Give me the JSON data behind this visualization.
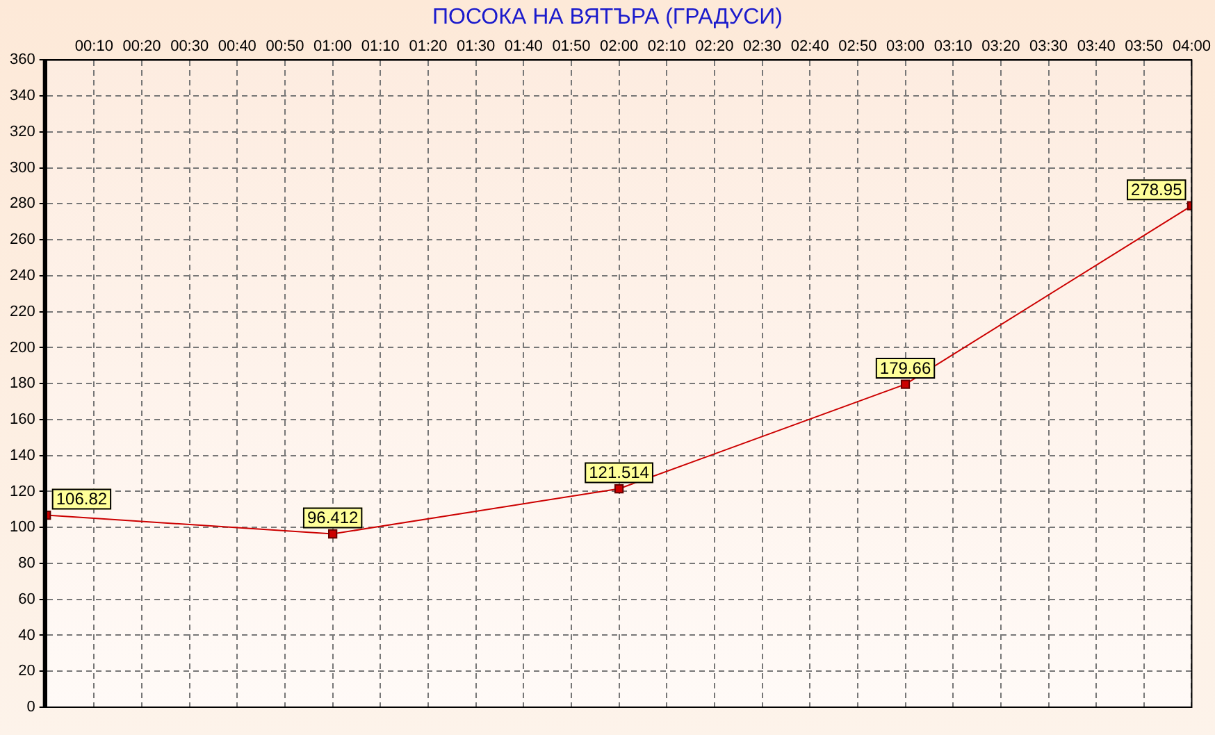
{
  "chart_data": {
    "type": "line",
    "title": "ПОСОКА НА ВЯТЪРА    (ГРАДУСИ)",
    "x": [
      0,
      1,
      2,
      3,
      4
    ],
    "series": [
      {
        "color": "#cc0000",
        "values": [
          106.82,
          96.412,
          121.514,
          179.66,
          278.95
        ]
      }
    ],
    "xlim": [
      0,
      4
    ],
    "xticks": [
      {
        "value": 0,
        "label": null
      },
      {
        "value": 0.16667,
        "label": "00:10"
      },
      {
        "value": 0.33333,
        "label": "00:20"
      },
      {
        "value": 0.5,
        "label": "00:30"
      },
      {
        "value": 0.66667,
        "label": "00:40"
      },
      {
        "value": 0.83333,
        "label": "00:50"
      },
      {
        "value": 1,
        "label": "01:00"
      },
      {
        "value": 1.16667,
        "label": "01:10"
      },
      {
        "value": 1.33333,
        "label": "01:20"
      },
      {
        "value": 1.5,
        "label": "01:30"
      },
      {
        "value": 1.66667,
        "label": "01:40"
      },
      {
        "value": 1.83333,
        "label": "01:50"
      },
      {
        "value": 2,
        "label": "02:00"
      },
      {
        "value": 2.16667,
        "label": "02:10"
      },
      {
        "value": 2.33333,
        "label": "02:20"
      },
      {
        "value": 2.5,
        "label": "02:30"
      },
      {
        "value": 2.66667,
        "label": "02:40"
      },
      {
        "value": 2.83333,
        "label": "02:50"
      },
      {
        "value": 3,
        "label": "03:00"
      },
      {
        "value": 3.16667,
        "label": "03:10"
      },
      {
        "value": 3.33333,
        "label": "03:20"
      },
      {
        "value": 3.5,
        "label": "03:30"
      },
      {
        "value": 3.66667,
        "label": "03:40"
      },
      {
        "value": 3.83333,
        "label": "03:50"
      },
      {
        "value": 4,
        "label": "04:00"
      }
    ],
    "ylim": [
      0,
      360
    ],
    "yticks": [
      0,
      20,
      40,
      60,
      80,
      100,
      120,
      140,
      160,
      180,
      200,
      220,
      240,
      260,
      280,
      300,
      320,
      340,
      360
    ],
    "grid": true,
    "marker": "square",
    "line_style": "solid",
    "data_labels": true
  }
}
